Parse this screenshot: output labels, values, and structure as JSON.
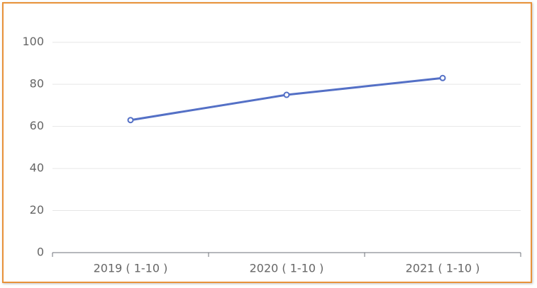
{
  "chart_data": {
    "type": "line",
    "categories": [
      "2019 ( 1-10 )",
      "2020 ( 1-10 )",
      "2021 ( 1-10 )"
    ],
    "series": [
      {
        "color": "#5470c6",
        "values": [
          63,
          75,
          83
        ]
      }
    ],
    "ylim": [
      0,
      110
    ],
    "yticks": [
      0,
      20,
      40,
      60,
      80,
      100
    ],
    "grid": true
  }
}
